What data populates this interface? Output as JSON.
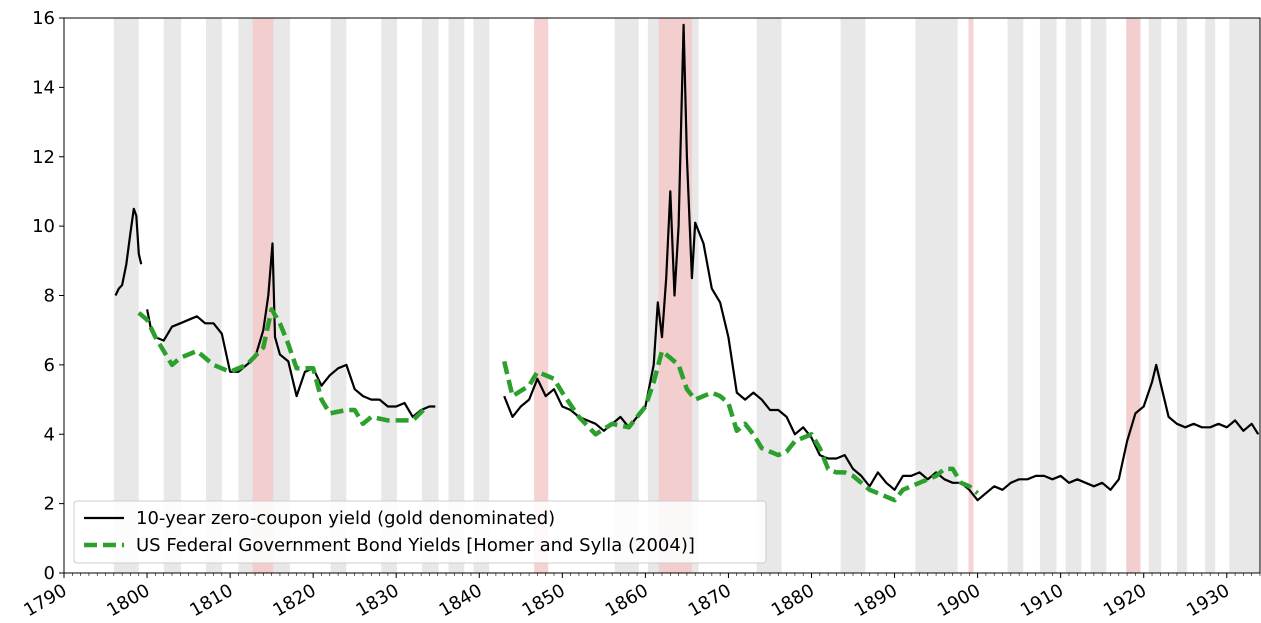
{
  "chart_data": {
    "type": "line",
    "xlim": [
      1790,
      1934
    ],
    "ylim": [
      0,
      16
    ],
    "xticks": [
      1790,
      1800,
      1810,
      1820,
      1830,
      1840,
      1850,
      1860,
      1870,
      1880,
      1890,
      1900,
      1910,
      1920,
      1930
    ],
    "yticks": [
      0,
      2,
      4,
      6,
      8,
      10,
      12,
      14,
      16
    ],
    "legend": "lower left",
    "recession_color": "#e6e6e6",
    "war_color": "#f4c7c7",
    "recessions": [
      [
        1796.0,
        1799.0
      ],
      [
        1802.0,
        1804.1
      ],
      [
        1807.1,
        1809.0
      ],
      [
        1811.0,
        1817.2
      ],
      [
        1822.1,
        1824.0
      ],
      [
        1828.2,
        1830.1
      ],
      [
        1833.1,
        1835.1
      ],
      [
        1836.3,
        1838.2
      ],
      [
        1839.3,
        1841.2
      ],
      [
        1856.3,
        1859.2
      ],
      [
        1860.3,
        1866.4
      ],
      [
        1873.4,
        1876.4
      ],
      [
        1883.5,
        1886.5
      ],
      [
        1892.5,
        1897.6
      ],
      [
        1903.6,
        1905.5
      ],
      [
        1907.5,
        1909.5
      ],
      [
        1910.6,
        1912.5
      ],
      [
        1913.6,
        1915.5
      ],
      [
        1917.9,
        1919.6
      ],
      [
        1920.6,
        1922.1
      ],
      [
        1924.0,
        1925.2
      ],
      [
        1927.4,
        1928.6
      ],
      [
        1930.3,
        1934
      ]
    ],
    "wars": [
      [
        1812.7,
        1815.2
      ],
      [
        1846.6,
        1848.3
      ],
      [
        1861.6,
        1865.6
      ],
      [
        1898.9,
        1899.5
      ],
      [
        1917.9,
        1919.6
      ]
    ],
    "series": [
      {
        "name": "10-year zero-coupon yield (gold denominated)",
        "color": "#000000",
        "style": "solid",
        "x": [
          1796.2,
          1796.6,
          1797,
          1797.5,
          1798,
          1798.4,
          1798.7,
          1799,
          1799.3,
          1799.6,
          1800,
          1800.5,
          1801,
          1802,
          1803,
          1804,
          1805,
          1806,
          1807,
          1808,
          1809,
          1810,
          1811,
          1812,
          1813,
          1814,
          1814.6,
          1815.1,
          1815.4,
          1816,
          1817,
          1818,
          1819,
          1820,
          1821,
          1822,
          1823,
          1824,
          1825,
          1826,
          1827,
          1828,
          1829,
          1830,
          1831,
          1832,
          1833,
          1834,
          1834.7,
          1838,
          1843,
          1844,
          1845,
          1846,
          1847,
          1848,
          1849,
          1850,
          1851,
          1852,
          1853,
          1854,
          1855,
          1856,
          1857,
          1858,
          1859,
          1860,
          1861,
          1861.5,
          1862,
          1862.5,
          1863,
          1863.5,
          1864,
          1864.6,
          1865,
          1865.6,
          1866,
          1867,
          1868,
          1869,
          1870,
          1871,
          1872,
          1873,
          1874,
          1875,
          1876,
          1877,
          1878,
          1879,
          1880,
          1881,
          1882,
          1883,
          1884,
          1885,
          1886,
          1887,
          1888,
          1889,
          1890,
          1891,
          1892,
          1893,
          1894,
          1895,
          1896,
          1897,
          1898,
          1899,
          1900,
          1901,
          1902,
          1903,
          1904,
          1905,
          1906,
          1907,
          1908,
          1909,
          1910,
          1911,
          1912,
          1913,
          1914,
          1915,
          1916,
          1917,
          1918,
          1919,
          1920,
          1921,
          1921.5,
          1922,
          1923,
          1924,
          1925,
          1926,
          1927,
          1928,
          1929,
          1930,
          1931,
          1932,
          1933,
          1933.8
        ],
        "values": [
          8.0,
          8.2,
          8.3,
          8.9,
          9.8,
          10.5,
          10.3,
          9.2,
          8.9,
          null,
          7.6,
          7.0,
          6.8,
          6.7,
          7.1,
          7.2,
          7.3,
          7.4,
          7.2,
          7.2,
          6.9,
          5.8,
          5.8,
          6.0,
          6.2,
          7.0,
          8.0,
          9.5,
          6.8,
          6.3,
          6.1,
          5.1,
          5.8,
          5.9,
          5.4,
          5.7,
          5.9,
          6.0,
          5.3,
          5.1,
          5.0,
          5.0,
          4.8,
          4.8,
          4.9,
          4.5,
          4.7,
          4.8,
          4.8,
          null,
          5.1,
          4.5,
          4.8,
          5.0,
          5.6,
          5.1,
          5.3,
          4.8,
          4.7,
          4.5,
          4.4,
          4.3,
          4.1,
          4.3,
          4.5,
          4.2,
          4.5,
          4.8,
          6.0,
          7.8,
          6.8,
          8.5,
          11.0,
          8.0,
          10.0,
          15.8,
          12.0,
          8.5,
          10.1,
          9.5,
          8.2,
          7.8,
          6.8,
          5.2,
          5.0,
          5.2,
          5.0,
          4.7,
          4.7,
          4.5,
          4.0,
          4.2,
          3.9,
          3.4,
          3.3,
          3.3,
          3.4,
          3.0,
          2.8,
          2.5,
          2.9,
          2.6,
          2.4,
          2.8,
          2.8,
          2.9,
          2.7,
          2.9,
          2.7,
          2.6,
          2.6,
          2.4,
          2.1,
          2.3,
          2.5,
          2.4,
          2.6,
          2.7,
          2.7,
          2.8,
          2.8,
          2.7,
          2.8,
          2.6,
          2.7,
          2.6,
          2.5,
          2.6,
          2.4,
          2.7,
          3.8,
          4.6,
          4.8,
          5.5,
          6.0,
          5.5,
          4.5,
          4.3,
          4.2,
          4.3,
          4.2,
          4.2,
          4.3,
          4.2,
          4.4,
          4.1,
          4.3,
          4.0
        ]
      },
      {
        "name": "US Federal Government Bond Yields [Homer and Sylla (2004)]",
        "color": "#2ca02c",
        "style": "dashed",
        "x": [
          1799,
          1800,
          1801,
          1802,
          1803,
          1804,
          1806,
          1808,
          1810,
          1812,
          1814,
          1815,
          1816,
          1817,
          1818,
          1819,
          1820,
          1821,
          1822,
          1824,
          1825,
          1826,
          1827,
          1829,
          1830,
          1832,
          1833.7,
          1838,
          1843,
          1844,
          1846,
          1847,
          1849,
          1850,
          1852,
          1854,
          1856,
          1858,
          1860,
          1861,
          1862,
          1863,
          1864,
          1865,
          1866,
          1867,
          1868,
          1869,
          1870,
          1871,
          1872,
          1873,
          1874,
          1876,
          1877,
          1878,
          1879,
          1880,
          1881,
          1882,
          1883,
          1884,
          1885,
          1886,
          1887,
          1888,
          1889,
          1890,
          1891,
          1893,
          1895,
          1896,
          1897,
          1898,
          1899,
          1900
        ],
        "values": [
          7.5,
          7.3,
          6.8,
          6.4,
          6.0,
          6.2,
          6.4,
          6.0,
          5.8,
          6.0,
          6.5,
          7.6,
          7.2,
          6.6,
          5.9,
          5.9,
          5.9,
          5.0,
          4.6,
          4.7,
          4.7,
          4.3,
          4.5,
          4.4,
          4.4,
          4.4,
          4.8,
          null,
          6.1,
          5.1,
          5.4,
          5.8,
          5.6,
          5.2,
          4.5,
          4.0,
          4.3,
          4.2,
          4.8,
          5.5,
          6.4,
          6.2,
          6.0,
          5.3,
          5.0,
          5.1,
          5.2,
          5.1,
          4.9,
          4.1,
          4.3,
          4.0,
          3.6,
          3.4,
          3.5,
          3.8,
          3.9,
          4.0,
          3.6,
          3.0,
          2.9,
          2.9,
          2.8,
          2.6,
          2.4,
          2.3,
          2.2,
          2.1,
          2.4,
          2.6,
          2.8,
          3.0,
          3.0,
          2.6,
          2.5,
          2.3
        ]
      }
    ]
  }
}
